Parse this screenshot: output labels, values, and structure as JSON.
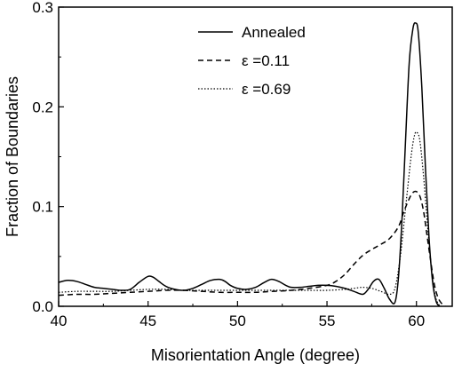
{
  "chart_data": {
    "type": "line",
    "xlabel": "Misorientation Angle (degree)",
    "ylabel": "Fraction of Boundaries",
    "xlim": [
      40,
      62
    ],
    "ylim": [
      0,
      0.3
    ],
    "xticks": [
      40,
      45,
      50,
      55,
      60
    ],
    "xtick_labels": [
      "40",
      "45",
      "50",
      "55",
      "60"
    ],
    "yticks": [
      0,
      0.1,
      0.2,
      0.3
    ],
    "ytick_labels": [
      "0.0",
      "0.1",
      "0.2",
      "0.3"
    ],
    "grid": false,
    "legend_position": "top-center",
    "series": [
      {
        "name": "Annealed",
        "style": "solid",
        "color": "#000000",
        "x": [
          40.0,
          40.5,
          41.0,
          41.5,
          42.0,
          42.5,
          43.0,
          43.5,
          44.0,
          44.5,
          45.0,
          45.3,
          45.6,
          46.0,
          46.5,
          47.0,
          47.5,
          48.0,
          48.5,
          49.0,
          49.3,
          49.6,
          50.0,
          50.5,
          51.0,
          51.5,
          51.9,
          52.3,
          52.7,
          53.0,
          53.5,
          54.0,
          54.5,
          55.0,
          55.5,
          56.0,
          56.5,
          57.0,
          57.3,
          57.6,
          57.9,
          58.2,
          58.5,
          58.8,
          59.0,
          59.2,
          59.4,
          59.6,
          59.8,
          59.95,
          60.1,
          60.3,
          60.5,
          60.7,
          60.9,
          61.1,
          61.3
        ],
        "y": [
          0.024,
          0.026,
          0.025,
          0.022,
          0.019,
          0.018,
          0.017,
          0.016,
          0.017,
          0.024,
          0.03,
          0.029,
          0.025,
          0.02,
          0.017,
          0.016,
          0.018,
          0.022,
          0.026,
          0.027,
          0.025,
          0.021,
          0.018,
          0.017,
          0.019,
          0.024,
          0.027,
          0.025,
          0.021,
          0.019,
          0.019,
          0.02,
          0.021,
          0.021,
          0.02,
          0.018,
          0.015,
          0.012,
          0.017,
          0.025,
          0.027,
          0.018,
          0.007,
          0.004,
          0.03,
          0.09,
          0.17,
          0.245,
          0.278,
          0.284,
          0.275,
          0.22,
          0.14,
          0.07,
          0.025,
          0.005,
          0.0
        ]
      },
      {
        "name": "ε =0.11",
        "style": "dashed",
        "color": "#000000",
        "x": [
          40.0,
          41.0,
          42.0,
          43.0,
          44.0,
          45.0,
          46.0,
          47.0,
          48.0,
          49.0,
          50.0,
          51.0,
          52.0,
          53.0,
          54.0,
          55.0,
          55.5,
          56.0,
          56.5,
          57.0,
          57.5,
          58.0,
          58.5,
          59.0,
          59.3,
          59.6,
          59.8,
          60.0,
          60.2,
          60.4,
          60.6,
          60.8,
          61.0,
          61.2,
          61.4,
          61.6
        ],
        "y": [
          0.011,
          0.012,
          0.012,
          0.013,
          0.014,
          0.015,
          0.016,
          0.016,
          0.015,
          0.014,
          0.014,
          0.014,
          0.015,
          0.016,
          0.018,
          0.021,
          0.025,
          0.032,
          0.042,
          0.051,
          0.057,
          0.062,
          0.068,
          0.08,
          0.095,
          0.108,
          0.114,
          0.115,
          0.11,
          0.095,
          0.07,
          0.045,
          0.022,
          0.009,
          0.003,
          0.0
        ]
      },
      {
        "name": "ε =0.69",
        "style": "dotted",
        "color": "#000000",
        "x": [
          40.0,
          41.0,
          42.0,
          43.0,
          44.0,
          45.0,
          46.0,
          47.0,
          48.0,
          49.0,
          50.0,
          51.0,
          52.0,
          53.0,
          54.0,
          55.0,
          56.0,
          56.5,
          57.0,
          57.5,
          58.0,
          58.5,
          58.8,
          59.1,
          59.4,
          59.7,
          59.9,
          60.05,
          60.2,
          60.4,
          60.6,
          60.8,
          61.0,
          61.2,
          61.4
        ],
        "y": [
          0.014,
          0.015,
          0.015,
          0.015,
          0.016,
          0.017,
          0.017,
          0.016,
          0.016,
          0.016,
          0.016,
          0.016,
          0.016,
          0.016,
          0.016,
          0.016,
          0.017,
          0.018,
          0.019,
          0.018,
          0.015,
          0.012,
          0.018,
          0.05,
          0.1,
          0.15,
          0.172,
          0.174,
          0.165,
          0.13,
          0.085,
          0.045,
          0.015,
          0.003,
          0.0
        ]
      }
    ]
  }
}
